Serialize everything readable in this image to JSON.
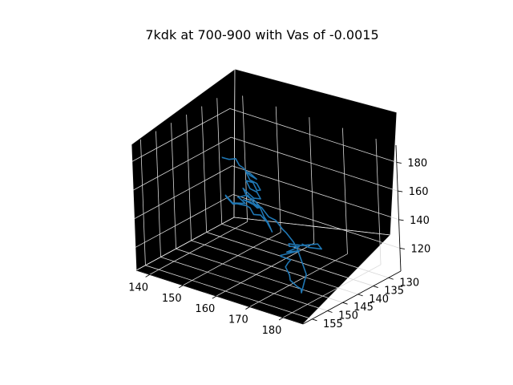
{
  "chart_data": {
    "type": "line",
    "title": "7kdk at 700-900 with Vas of -0.0015",
    "projection": "3d",
    "grid": true,
    "series_color": "#1f77b4",
    "xlim": [
      136,
      186
    ],
    "ylim": [
      126,
      158
    ],
    "zlim": [
      104,
      192
    ],
    "x_ticks": [
      140,
      150,
      160,
      170,
      180
    ],
    "y_ticks": [
      130,
      135,
      140,
      145,
      150,
      155
    ],
    "z_ticks": [
      120,
      140,
      160,
      180
    ],
    "series": [
      {
        "points": [
          [
            161,
            131,
            110
          ],
          [
            164,
            132,
            111
          ],
          [
            166,
            130,
            109
          ],
          [
            163,
            128,
            108
          ],
          [
            160,
            130,
            107
          ],
          [
            158,
            132,
            109
          ],
          [
            160,
            134,
            111
          ],
          [
            163,
            134,
            113
          ],
          [
            162,
            137,
            112
          ],
          [
            165,
            136,
            114
          ],
          [
            162,
            139,
            112
          ],
          [
            164,
            141,
            115
          ],
          [
            166,
            140,
            113
          ],
          [
            168,
            143,
            116
          ],
          [
            170,
            146,
            118
          ],
          [
            173,
            148,
            117
          ],
          [
            176,
            151,
            119
          ],
          [
            179,
            152,
            118
          ],
          [
            182,
            154,
            121
          ],
          [
            184,
            156,
            122
          ],
          [
            180,
            150,
            125
          ],
          [
            176,
            147,
            127
          ],
          [
            172,
            144,
            129
          ],
          [
            168,
            141,
            128
          ],
          [
            165,
            140,
            131
          ],
          [
            162,
            138,
            129
          ],
          [
            159,
            137,
            132
          ],
          [
            156,
            136,
            131
          ],
          [
            153,
            135,
            134
          ],
          [
            150,
            134,
            133
          ],
          [
            147,
            133,
            136
          ],
          [
            145,
            134,
            134
          ],
          [
            147,
            136,
            138
          ],
          [
            150,
            137,
            137
          ],
          [
            149,
            140,
            140
          ],
          [
            146,
            139,
            142
          ],
          [
            148,
            141,
            145
          ],
          [
            151,
            142,
            143
          ],
          [
            153,
            143,
            146
          ],
          [
            155,
            142,
            145
          ],
          [
            158,
            144,
            148
          ],
          [
            160,
            145,
            146
          ],
          [
            163,
            146,
            149
          ],
          [
            166,
            147,
            147
          ],
          [
            168,
            149,
            150
          ],
          [
            170,
            150,
            148
          ],
          [
            172,
            152,
            151
          ],
          [
            169,
            150,
            153
          ],
          [
            166,
            148,
            152
          ],
          [
            163,
            146,
            154
          ],
          [
            160,
            145,
            153
          ],
          [
            158,
            146,
            156
          ],
          [
            161,
            147,
            158
          ],
          [
            164,
            148,
            157
          ],
          [
            166,
            149,
            160
          ],
          [
            163,
            148,
            162
          ],
          [
            160,
            147,
            161
          ],
          [
            158,
            146,
            164
          ],
          [
            161,
            148,
            166
          ],
          [
            164,
            149,
            165
          ],
          [
            167,
            150,
            168
          ],
          [
            165,
            149,
            170
          ],
          [
            162,
            148,
            169
          ],
          [
            160,
            147,
            172
          ],
          [
            163,
            148,
            174
          ],
          [
            166,
            150,
            173
          ],
          [
            168,
            151,
            176
          ],
          [
            166,
            150,
            178
          ],
          [
            163,
            149,
            177
          ],
          [
            161,
            148,
            180
          ],
          [
            163,
            149,
            182
          ],
          [
            166,
            150,
            181
          ],
          [
            165,
            151,
            184
          ],
          [
            162,
            150,
            186
          ],
          [
            160,
            149,
            185
          ],
          [
            158,
            148,
            187
          ],
          [
            156,
            148,
            185
          ],
          [
            154,
            147,
            183
          ],
          [
            152,
            146,
            181
          ],
          [
            151,
            145,
            179
          ]
        ]
      }
    ]
  }
}
